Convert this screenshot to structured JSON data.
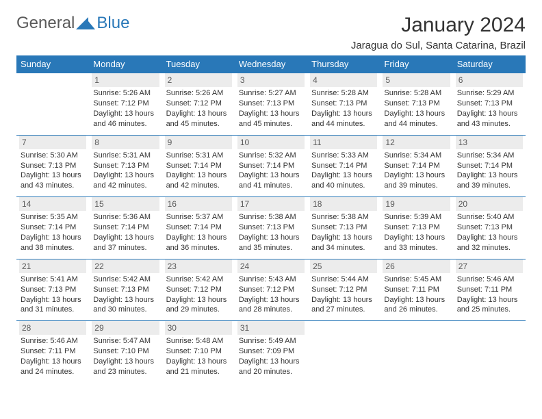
{
  "brand": {
    "part1": "General",
    "part2": "Blue"
  },
  "title": "January 2024",
  "location": "Jaragua do Sul, Santa Catarina, Brazil",
  "colors": {
    "accent": "#2978b8",
    "daynum_bg": "#ececec",
    "text": "#333333"
  },
  "weekdays": [
    "Sunday",
    "Monday",
    "Tuesday",
    "Wednesday",
    "Thursday",
    "Friday",
    "Saturday"
  ],
  "weeks": [
    [
      {
        "n": "",
        "sr": "",
        "ss": "",
        "dl": ""
      },
      {
        "n": "1",
        "sr": "Sunrise: 5:26 AM",
        "ss": "Sunset: 7:12 PM",
        "dl": "Daylight: 13 hours and 46 minutes."
      },
      {
        "n": "2",
        "sr": "Sunrise: 5:26 AM",
        "ss": "Sunset: 7:12 PM",
        "dl": "Daylight: 13 hours and 45 minutes."
      },
      {
        "n": "3",
        "sr": "Sunrise: 5:27 AM",
        "ss": "Sunset: 7:13 PM",
        "dl": "Daylight: 13 hours and 45 minutes."
      },
      {
        "n": "4",
        "sr": "Sunrise: 5:28 AM",
        "ss": "Sunset: 7:13 PM",
        "dl": "Daylight: 13 hours and 44 minutes."
      },
      {
        "n": "5",
        "sr": "Sunrise: 5:28 AM",
        "ss": "Sunset: 7:13 PM",
        "dl": "Daylight: 13 hours and 44 minutes."
      },
      {
        "n": "6",
        "sr": "Sunrise: 5:29 AM",
        "ss": "Sunset: 7:13 PM",
        "dl": "Daylight: 13 hours and 43 minutes."
      }
    ],
    [
      {
        "n": "7",
        "sr": "Sunrise: 5:30 AM",
        "ss": "Sunset: 7:13 PM",
        "dl": "Daylight: 13 hours and 43 minutes."
      },
      {
        "n": "8",
        "sr": "Sunrise: 5:31 AM",
        "ss": "Sunset: 7:13 PM",
        "dl": "Daylight: 13 hours and 42 minutes."
      },
      {
        "n": "9",
        "sr": "Sunrise: 5:31 AM",
        "ss": "Sunset: 7:14 PM",
        "dl": "Daylight: 13 hours and 42 minutes."
      },
      {
        "n": "10",
        "sr": "Sunrise: 5:32 AM",
        "ss": "Sunset: 7:14 PM",
        "dl": "Daylight: 13 hours and 41 minutes."
      },
      {
        "n": "11",
        "sr": "Sunrise: 5:33 AM",
        "ss": "Sunset: 7:14 PM",
        "dl": "Daylight: 13 hours and 40 minutes."
      },
      {
        "n": "12",
        "sr": "Sunrise: 5:34 AM",
        "ss": "Sunset: 7:14 PM",
        "dl": "Daylight: 13 hours and 39 minutes."
      },
      {
        "n": "13",
        "sr": "Sunrise: 5:34 AM",
        "ss": "Sunset: 7:14 PM",
        "dl": "Daylight: 13 hours and 39 minutes."
      }
    ],
    [
      {
        "n": "14",
        "sr": "Sunrise: 5:35 AM",
        "ss": "Sunset: 7:14 PM",
        "dl": "Daylight: 13 hours and 38 minutes."
      },
      {
        "n": "15",
        "sr": "Sunrise: 5:36 AM",
        "ss": "Sunset: 7:14 PM",
        "dl": "Daylight: 13 hours and 37 minutes."
      },
      {
        "n": "16",
        "sr": "Sunrise: 5:37 AM",
        "ss": "Sunset: 7:14 PM",
        "dl": "Daylight: 13 hours and 36 minutes."
      },
      {
        "n": "17",
        "sr": "Sunrise: 5:38 AM",
        "ss": "Sunset: 7:13 PM",
        "dl": "Daylight: 13 hours and 35 minutes."
      },
      {
        "n": "18",
        "sr": "Sunrise: 5:38 AM",
        "ss": "Sunset: 7:13 PM",
        "dl": "Daylight: 13 hours and 34 minutes."
      },
      {
        "n": "19",
        "sr": "Sunrise: 5:39 AM",
        "ss": "Sunset: 7:13 PM",
        "dl": "Daylight: 13 hours and 33 minutes."
      },
      {
        "n": "20",
        "sr": "Sunrise: 5:40 AM",
        "ss": "Sunset: 7:13 PM",
        "dl": "Daylight: 13 hours and 32 minutes."
      }
    ],
    [
      {
        "n": "21",
        "sr": "Sunrise: 5:41 AM",
        "ss": "Sunset: 7:13 PM",
        "dl": "Daylight: 13 hours and 31 minutes."
      },
      {
        "n": "22",
        "sr": "Sunrise: 5:42 AM",
        "ss": "Sunset: 7:13 PM",
        "dl": "Daylight: 13 hours and 30 minutes."
      },
      {
        "n": "23",
        "sr": "Sunrise: 5:42 AM",
        "ss": "Sunset: 7:12 PM",
        "dl": "Daylight: 13 hours and 29 minutes."
      },
      {
        "n": "24",
        "sr": "Sunrise: 5:43 AM",
        "ss": "Sunset: 7:12 PM",
        "dl": "Daylight: 13 hours and 28 minutes."
      },
      {
        "n": "25",
        "sr": "Sunrise: 5:44 AM",
        "ss": "Sunset: 7:12 PM",
        "dl": "Daylight: 13 hours and 27 minutes."
      },
      {
        "n": "26",
        "sr": "Sunrise: 5:45 AM",
        "ss": "Sunset: 7:11 PM",
        "dl": "Daylight: 13 hours and 26 minutes."
      },
      {
        "n": "27",
        "sr": "Sunrise: 5:46 AM",
        "ss": "Sunset: 7:11 PM",
        "dl": "Daylight: 13 hours and 25 minutes."
      }
    ],
    [
      {
        "n": "28",
        "sr": "Sunrise: 5:46 AM",
        "ss": "Sunset: 7:11 PM",
        "dl": "Daylight: 13 hours and 24 minutes."
      },
      {
        "n": "29",
        "sr": "Sunrise: 5:47 AM",
        "ss": "Sunset: 7:10 PM",
        "dl": "Daylight: 13 hours and 23 minutes."
      },
      {
        "n": "30",
        "sr": "Sunrise: 5:48 AM",
        "ss": "Sunset: 7:10 PM",
        "dl": "Daylight: 13 hours and 21 minutes."
      },
      {
        "n": "31",
        "sr": "Sunrise: 5:49 AM",
        "ss": "Sunset: 7:09 PM",
        "dl": "Daylight: 13 hours and 20 minutes."
      },
      {
        "n": "",
        "sr": "",
        "ss": "",
        "dl": ""
      },
      {
        "n": "",
        "sr": "",
        "ss": "",
        "dl": ""
      },
      {
        "n": "",
        "sr": "",
        "ss": "",
        "dl": ""
      }
    ]
  ]
}
